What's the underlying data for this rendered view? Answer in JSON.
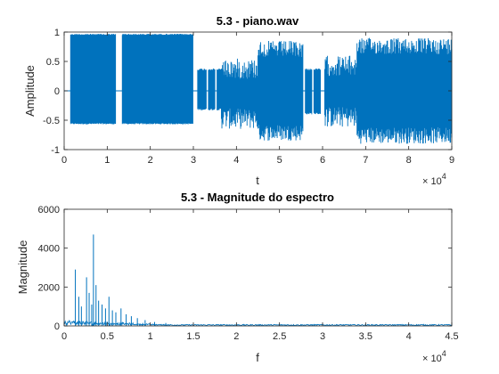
{
  "chart_data": [
    {
      "type": "line",
      "title": "5.3 - piano.wav",
      "xlabel": "t",
      "ylabel": "Amplitude",
      "xlim": [
        0,
        90000
      ],
      "ylim": [
        -1,
        1
      ],
      "x_ticks": [
        0,
        10000,
        20000,
        30000,
        40000,
        50000,
        60000,
        70000,
        80000,
        90000
      ],
      "x_tick_labels": [
        "0",
        "1",
        "2",
        "3",
        "4",
        "5",
        "6",
        "7",
        "8",
        "9"
      ],
      "x_exponent_base": "× 10",
      "x_exponent_power": "4",
      "y_ticks": [
        -1,
        -0.5,
        0,
        0.5,
        1
      ],
      "y_tick_labels": [
        "-1",
        "-0.5",
        "0",
        "0.5",
        "1"
      ],
      "grid": false,
      "color": "#0072BD",
      "segments": [
        {
          "x": [
            1500,
            12000
          ],
          "max": 0.97,
          "min": -0.57,
          "variability": 0.02
        },
        {
          "x": [
            13500,
            30000
          ],
          "max": 0.97,
          "min": -0.57,
          "variability": 0.02
        },
        {
          "x": [
            31000,
            33000
          ],
          "max": 0.38,
          "min": -0.33,
          "variability": 0.03
        },
        {
          "x": [
            33500,
            35000
          ],
          "max": 0.38,
          "min": -0.33,
          "variability": 0.03
        },
        {
          "x": [
            35500,
            37000
          ],
          "max": 0.38,
          "min": -0.33,
          "variability": 0.03
        },
        {
          "x": [
            36500,
            45000
          ],
          "max": 0.55,
          "min": -0.65,
          "variability": 0.25
        },
        {
          "x": [
            45000,
            55500
          ],
          "max": 0.85,
          "min": -0.85,
          "variability": 0.2
        },
        {
          "x": [
            56000,
            57500
          ],
          "max": 0.38,
          "min": -0.4,
          "variability": 0.03
        },
        {
          "x": [
            58000,
            59500
          ],
          "max": 0.38,
          "min": -0.4,
          "variability": 0.03
        },
        {
          "x": [
            60500,
            68000
          ],
          "max": 0.6,
          "min": -0.62,
          "variability": 0.25
        },
        {
          "x": [
            68000,
            90000
          ],
          "max": 0.9,
          "min": -0.9,
          "variability": 0.2
        }
      ]
    },
    {
      "type": "line",
      "title": "5.3 - Magnitude do espectro",
      "xlabel": "f",
      "ylabel": "Magnitude",
      "xlim": [
        0,
        45000
      ],
      "ylim": [
        0,
        6000
      ],
      "x_ticks": [
        0,
        5000,
        10000,
        15000,
        20000,
        25000,
        30000,
        35000,
        40000,
        45000
      ],
      "x_tick_labels": [
        "0",
        "0.5",
        "1",
        "1.5",
        "2",
        "2.5",
        "3",
        "3.5",
        "4",
        "4.5"
      ],
      "x_exponent_base": "× 10",
      "x_exponent_power": "4",
      "y_ticks": [
        0,
        2000,
        4000,
        6000
      ],
      "y_tick_labels": [
        "0",
        "2000",
        "4000",
        "6000"
      ],
      "grid": false,
      "color": "#0072BD",
      "peaks": [
        {
          "f": 1300,
          "mag": 2900
        },
        {
          "f": 1700,
          "mag": 1500
        },
        {
          "f": 2000,
          "mag": 1000
        },
        {
          "f": 2600,
          "mag": 2500
        },
        {
          "f": 2900,
          "mag": 1700
        },
        {
          "f": 3200,
          "mag": 1100
        },
        {
          "f": 3400,
          "mag": 4700
        },
        {
          "f": 3700,
          "mag": 2100
        },
        {
          "f": 4000,
          "mag": 1300
        },
        {
          "f": 4400,
          "mag": 1100
        },
        {
          "f": 4800,
          "mag": 900
        },
        {
          "f": 5200,
          "mag": 1500
        },
        {
          "f": 5600,
          "mag": 800
        },
        {
          "f": 6000,
          "mag": 700
        },
        {
          "f": 6600,
          "mag": 900
        },
        {
          "f": 7200,
          "mag": 600
        },
        {
          "f": 7800,
          "mag": 500
        },
        {
          "f": 8500,
          "mag": 400
        },
        {
          "f": 9400,
          "mag": 300
        },
        {
          "f": 10500,
          "mag": 200
        },
        {
          "f": 11800,
          "mag": 150
        }
      ],
      "noise_floor": 60
    }
  ]
}
